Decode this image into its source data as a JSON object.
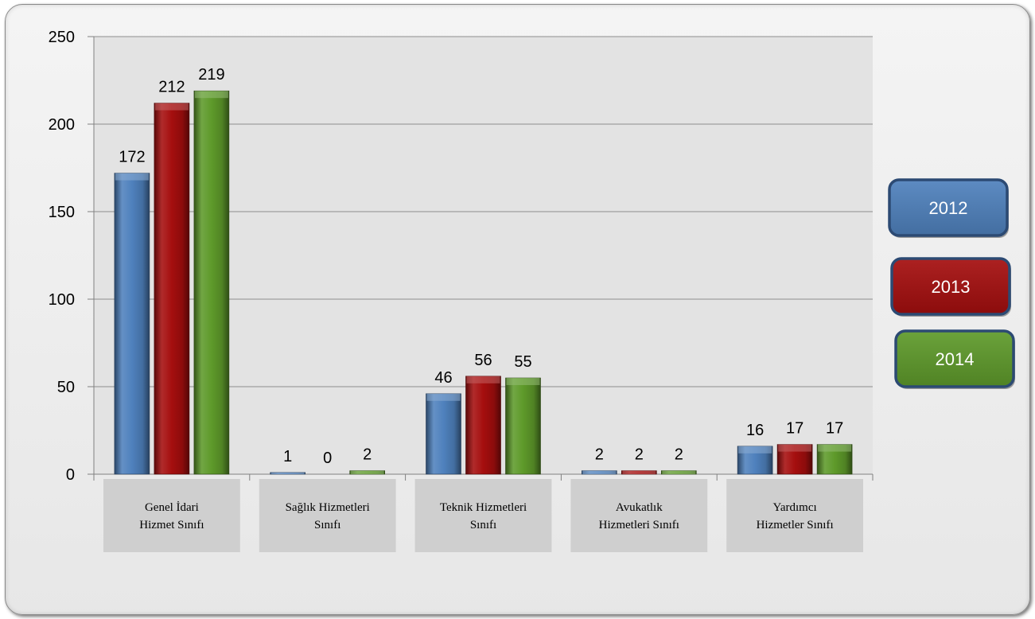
{
  "chart_data": {
    "type": "bar",
    "categories": [
      [
        "Genel İdari",
        "Hizmet Sınıfı"
      ],
      [
        "Sağlık Hizmetleri",
        "Sınıfı"
      ],
      [
        "Teknik Hizmetleri",
        "Sınıfı"
      ],
      [
        "Avukatlık",
        "Hizmetleri Sınıfı"
      ],
      [
        "Yardımcı",
        "Hizmetler Sınıfı"
      ]
    ],
    "series": [
      {
        "name": "2012",
        "color": "#4f81bd",
        "values": [
          172,
          1,
          46,
          2,
          16
        ]
      },
      {
        "name": "2013",
        "color": "#a50e0e",
        "values": [
          212,
          0,
          56,
          2,
          17
        ]
      },
      {
        "name": "2014",
        "color": "#5e9a2a",
        "values": [
          219,
          2,
          55,
          2,
          17
        ]
      }
    ],
    "ylim": [
      0,
      250
    ],
    "yticks": [
      0,
      50,
      100,
      150,
      200,
      250
    ],
    "grid": true,
    "legend_position": "right",
    "plot_background": "#e3e3e3",
    "category_box_color": "#cfcfcf"
  }
}
